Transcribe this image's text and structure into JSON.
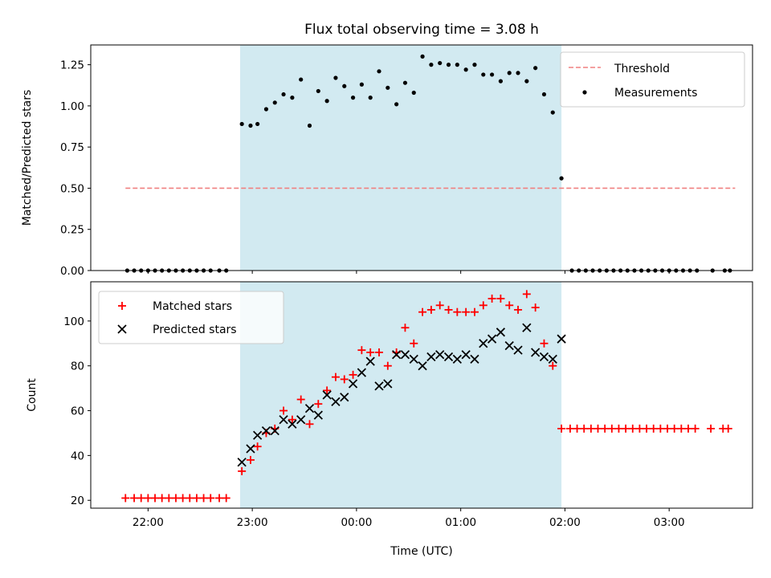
{
  "chart_data": [
    {
      "type": "scatter",
      "title": "Flux total observing time = 3.08 h",
      "xlabel": "",
      "ylabel": "Matched/Predicted stars",
      "ylim": [
        0.0,
        1.37
      ],
      "xlim": [
        "21:27",
        "03:48"
      ],
      "yticks": [
        "0.00",
        "0.25",
        "0.50",
        "0.75",
        "1.00",
        "1.25"
      ],
      "ytick_values": [
        0,
        0.25,
        0.5,
        0.75,
        1.0,
        1.25
      ],
      "shaded_span": {
        "x0": "22:53",
        "x1": "01:58",
        "color": "#add8e6"
      },
      "legend": {
        "position": "top-right",
        "entries": [
          "Threshold",
          "Measurements"
        ]
      },
      "threshold": {
        "name": "Threshold",
        "y": 0.5,
        "x0": "21:47",
        "x1": "03:38",
        "color": "#f08080",
        "style": "dashed"
      },
      "series": [
        {
          "name": "Measurements",
          "color": "#000000",
          "marker": "dot",
          "points": [
            [
              "21:48",
              0
            ],
            [
              "21:52",
              0
            ],
            [
              "21:56",
              0
            ],
            [
              "22:00",
              0
            ],
            [
              "22:04",
              0
            ],
            [
              "22:08",
              0
            ],
            [
              "22:12",
              0
            ],
            [
              "22:16",
              0
            ],
            [
              "22:20",
              0
            ],
            [
              "22:24",
              0
            ],
            [
              "22:28",
              0
            ],
            [
              "22:32",
              0
            ],
            [
              "22:36",
              0
            ],
            [
              "22:41",
              0
            ],
            [
              "22:45",
              0
            ],
            [
              "22:54",
              0.89
            ],
            [
              "22:59",
              0.88
            ],
            [
              "23:03",
              0.89
            ],
            [
              "23:08",
              0.98
            ],
            [
              "23:13",
              1.02
            ],
            [
              "23:18",
              1.07
            ],
            [
              "23:23",
              1.05
            ],
            [
              "23:28",
              1.16
            ],
            [
              "23:33",
              0.88
            ],
            [
              "23:38",
              1.09
            ],
            [
              "23:43",
              1.03
            ],
            [
              "23:48",
              1.17
            ],
            [
              "23:53",
              1.12
            ],
            [
              "23:58",
              1.05
            ],
            [
              "00:03",
              1.13
            ],
            [
              "00:08",
              1.05
            ],
            [
              "00:13",
              1.21
            ],
            [
              "00:18",
              1.11
            ],
            [
              "00:23",
              1.01
            ],
            [
              "00:28",
              1.14
            ],
            [
              "00:33",
              1.08
            ],
            [
              "00:38",
              1.3
            ],
            [
              "00:43",
              1.25
            ],
            [
              "00:48",
              1.26
            ],
            [
              "00:53",
              1.25
            ],
            [
              "00:58",
              1.25
            ],
            [
              "01:03",
              1.22
            ],
            [
              "01:08",
              1.25
            ],
            [
              "01:13",
              1.19
            ],
            [
              "01:18",
              1.19
            ],
            [
              "01:23",
              1.15
            ],
            [
              "01:28",
              1.2
            ],
            [
              "01:33",
              1.2
            ],
            [
              "01:38",
              1.15
            ],
            [
              "01:43",
              1.23
            ],
            [
              "01:48",
              1.07
            ],
            [
              "01:53",
              0.96
            ],
            [
              "01:58",
              0.56
            ],
            [
              "02:04",
              0
            ],
            [
              "02:08",
              0
            ],
            [
              "02:12",
              0
            ],
            [
              "02:16",
              0
            ],
            [
              "02:20",
              0
            ],
            [
              "02:24",
              0
            ],
            [
              "02:28",
              0
            ],
            [
              "02:32",
              0
            ],
            [
              "02:36",
              0
            ],
            [
              "02:40",
              0
            ],
            [
              "02:44",
              0
            ],
            [
              "02:48",
              0
            ],
            [
              "02:52",
              0
            ],
            [
              "02:56",
              0
            ],
            [
              "03:00",
              0
            ],
            [
              "03:04",
              0
            ],
            [
              "03:08",
              0
            ],
            [
              "03:12",
              0
            ],
            [
              "03:16",
              0
            ],
            [
              "03:25",
              0
            ],
            [
              "03:32",
              0
            ],
            [
              "03:35",
              0
            ]
          ]
        }
      ]
    },
    {
      "type": "scatter",
      "title": "",
      "xlabel": "Time (UTC)",
      "ylabel": "Count",
      "ylim": [
        16.5,
        117.5
      ],
      "xlim": [
        "21:27",
        "03:48"
      ],
      "yticks": [
        "20",
        "40",
        "60",
        "80",
        "100"
      ],
      "ytick_values": [
        20,
        40,
        60,
        80,
        100
      ],
      "xticks": [
        "22:00",
        "23:00",
        "00:00",
        "01:00",
        "02:00",
        "03:00"
      ],
      "shaded_span": {
        "x0": "22:53",
        "x1": "01:58",
        "color": "#add8e6"
      },
      "legend": {
        "position": "top-left",
        "entries": [
          "Matched stars",
          "Predicted stars"
        ]
      },
      "series": [
        {
          "name": "Matched stars",
          "color": "#ff0000",
          "marker": "plus",
          "points": [
            [
              "21:47",
              21
            ],
            [
              "21:52",
              21
            ],
            [
              "21:56",
              21
            ],
            [
              "22:00",
              21
            ],
            [
              "22:04",
              21
            ],
            [
              "22:08",
              21
            ],
            [
              "22:12",
              21
            ],
            [
              "22:16",
              21
            ],
            [
              "22:20",
              21
            ],
            [
              "22:24",
              21
            ],
            [
              "22:28",
              21
            ],
            [
              "22:32",
              21
            ],
            [
              "22:36",
              21
            ],
            [
              "22:41",
              21
            ],
            [
              "22:45",
              21
            ],
            [
              "22:54",
              33
            ],
            [
              "22:59",
              38
            ],
            [
              "23:03",
              44
            ],
            [
              "23:08",
              50
            ],
            [
              "23:13",
              52
            ],
            [
              "23:18",
              60
            ],
            [
              "23:23",
              56
            ],
            [
              "23:28",
              65
            ],
            [
              "23:33",
              54
            ],
            [
              "23:38",
              63
            ],
            [
              "23:43",
              69
            ],
            [
              "23:48",
              75
            ],
            [
              "23:53",
              74
            ],
            [
              "23:58",
              76
            ],
            [
              "00:03",
              87
            ],
            [
              "00:08",
              86
            ],
            [
              "00:13",
              86
            ],
            [
              "00:18",
              80
            ],
            [
              "00:23",
              86
            ],
            [
              "00:28",
              97
            ],
            [
              "00:33",
              90
            ],
            [
              "00:38",
              104
            ],
            [
              "00:43",
              105
            ],
            [
              "00:48",
              107
            ],
            [
              "00:53",
              105
            ],
            [
              "00:58",
              104
            ],
            [
              "01:03",
              104
            ],
            [
              "01:08",
              104
            ],
            [
              "01:13",
              107
            ],
            [
              "01:18",
              110
            ],
            [
              "01:23",
              110
            ],
            [
              "01:28",
              107
            ],
            [
              "01:33",
              105
            ],
            [
              "01:38",
              112
            ],
            [
              "01:43",
              106
            ],
            [
              "01:48",
              90
            ],
            [
              "01:53",
              80
            ],
            [
              "01:58",
              52
            ],
            [
              "02:03",
              52
            ],
            [
              "02:07",
              52
            ],
            [
              "02:11",
              52
            ],
            [
              "02:15",
              52
            ],
            [
              "02:19",
              52
            ],
            [
              "02:23",
              52
            ],
            [
              "02:27",
              52
            ],
            [
              "02:31",
              52
            ],
            [
              "02:35",
              52
            ],
            [
              "02:39",
              52
            ],
            [
              "02:43",
              52
            ],
            [
              "02:47",
              52
            ],
            [
              "02:51",
              52
            ],
            [
              "02:55",
              52
            ],
            [
              "02:59",
              52
            ],
            [
              "03:03",
              52
            ],
            [
              "03:07",
              52
            ],
            [
              "03:11",
              52
            ],
            [
              "03:15",
              52
            ],
            [
              "03:24",
              52
            ],
            [
              "03:31",
              52
            ],
            [
              "03:34",
              52
            ]
          ]
        },
        {
          "name": "Predicted stars",
          "color": "#000000",
          "marker": "x",
          "points": [
            [
              "22:54",
              37
            ],
            [
              "22:59",
              43
            ],
            [
              "23:03",
              49
            ],
            [
              "23:08",
              51
            ],
            [
              "23:13",
              51
            ],
            [
              "23:18",
              56
            ],
            [
              "23:23",
              54
            ],
            [
              "23:28",
              56
            ],
            [
              "23:33",
              61
            ],
            [
              "23:38",
              58
            ],
            [
              "23:43",
              67
            ],
            [
              "23:48",
              64
            ],
            [
              "23:53",
              66
            ],
            [
              "23:58",
              72
            ],
            [
              "00:03",
              77
            ],
            [
              "00:08",
              82
            ],
            [
              "00:13",
              71
            ],
            [
              "00:18",
              72
            ],
            [
              "00:23",
              85
            ],
            [
              "00:28",
              85
            ],
            [
              "00:33",
              83
            ],
            [
              "00:38",
              80
            ],
            [
              "00:43",
              84
            ],
            [
              "00:48",
              85
            ],
            [
              "00:53",
              84
            ],
            [
              "00:58",
              83
            ],
            [
              "01:03",
              85
            ],
            [
              "01:08",
              83
            ],
            [
              "01:13",
              90
            ],
            [
              "01:18",
              92
            ],
            [
              "01:23",
              95
            ],
            [
              "01:28",
              89
            ],
            [
              "01:33",
              87
            ],
            [
              "01:38",
              97
            ],
            [
              "01:43",
              86
            ],
            [
              "01:48",
              84
            ],
            [
              "01:53",
              83
            ],
            [
              "01:58",
              92
            ]
          ]
        }
      ]
    }
  ]
}
